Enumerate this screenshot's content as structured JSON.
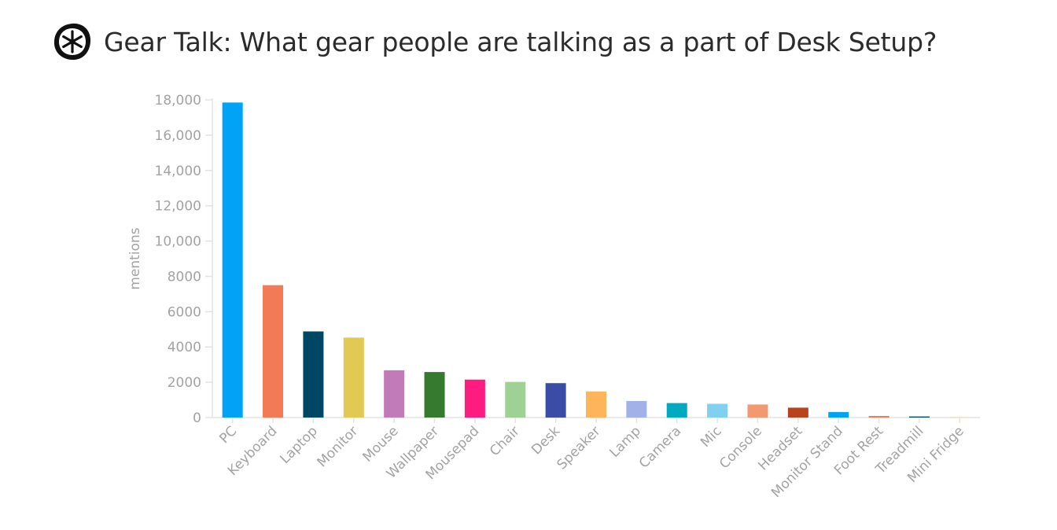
{
  "header": {
    "title": "Gear Talk: What gear people are talking as a part of Desk Setup?",
    "logo_icon": "asterisk-badge-icon"
  },
  "chart_data": {
    "type": "bar",
    "title": "Gear Talk: What gear people are talking as a part of Desk Setup?",
    "xlabel": "",
    "ylabel": "mentions",
    "ylim": [
      0,
      18000
    ],
    "yticks": [
      0,
      2000,
      4000,
      6000,
      8000,
      10000,
      12000,
      14000,
      16000,
      18000
    ],
    "ytick_labels": [
      "0",
      "2000",
      "4000",
      "6000",
      "8000",
      "10,000",
      "12,000",
      "14,000",
      "16,000",
      "18,000"
    ],
    "grid": false,
    "categories": [
      "PC",
      "Keyboard",
      "Laptop",
      "Monitor",
      "Mouse",
      "Wallpaper",
      "Mousepad",
      "Chair",
      "Desk",
      "Speaker",
      "Lamp",
      "Camera",
      "Mic",
      "Console",
      "Headset",
      "Monitor Stand",
      "Foot Rest",
      "Treadmill",
      "Mini Fridge"
    ],
    "values": [
      17850,
      7500,
      4880,
      4530,
      2680,
      2580,
      2150,
      2020,
      1950,
      1480,
      940,
      820,
      780,
      740,
      560,
      310,
      90,
      60,
      10
    ],
    "colors": [
      "#00a3f5",
      "#f27a55",
      "#004766",
      "#e2c954",
      "#c07bb8",
      "#357a2e",
      "#fe1c80",
      "#9fd195",
      "#3a4ca6",
      "#fdb45a",
      "#a2b1e8",
      "#00abc2",
      "#81d0ef",
      "#f39972",
      "#b8431d",
      "#00a3f5",
      "#f27a55",
      "#004766",
      "#e2c954"
    ]
  }
}
